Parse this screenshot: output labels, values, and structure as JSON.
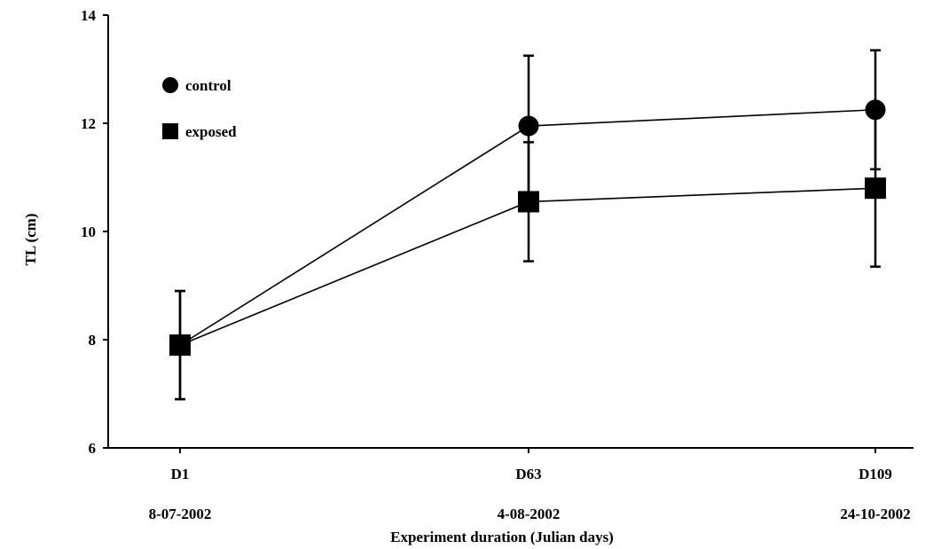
{
  "chart_data": {
    "type": "line",
    "xlabel": "Experiment duration (Julian days)",
    "ylabel": "TL (cm)",
    "ylim": [
      6,
      14
    ],
    "yticks": [
      "6",
      "8",
      "10",
      "12",
      "14"
    ],
    "categories": [
      "D1",
      "D63",
      "D109"
    ],
    "dates": [
      "8-07-2002",
      "4-08-2002",
      "24-10-2002"
    ],
    "legend_position": "top-left",
    "grid": false,
    "series": [
      {
        "name": "control",
        "marker": "circle",
        "color": "#000000",
        "values": [
          7.9,
          11.95,
          12.25
        ],
        "error": [
          1.0,
          1.3,
          1.1
        ]
      },
      {
        "name": "exposed",
        "marker": "square",
        "color": "#000000",
        "values": [
          7.9,
          10.55,
          10.8
        ],
        "error": [
          1.0,
          1.1,
          1.45
        ]
      }
    ]
  }
}
